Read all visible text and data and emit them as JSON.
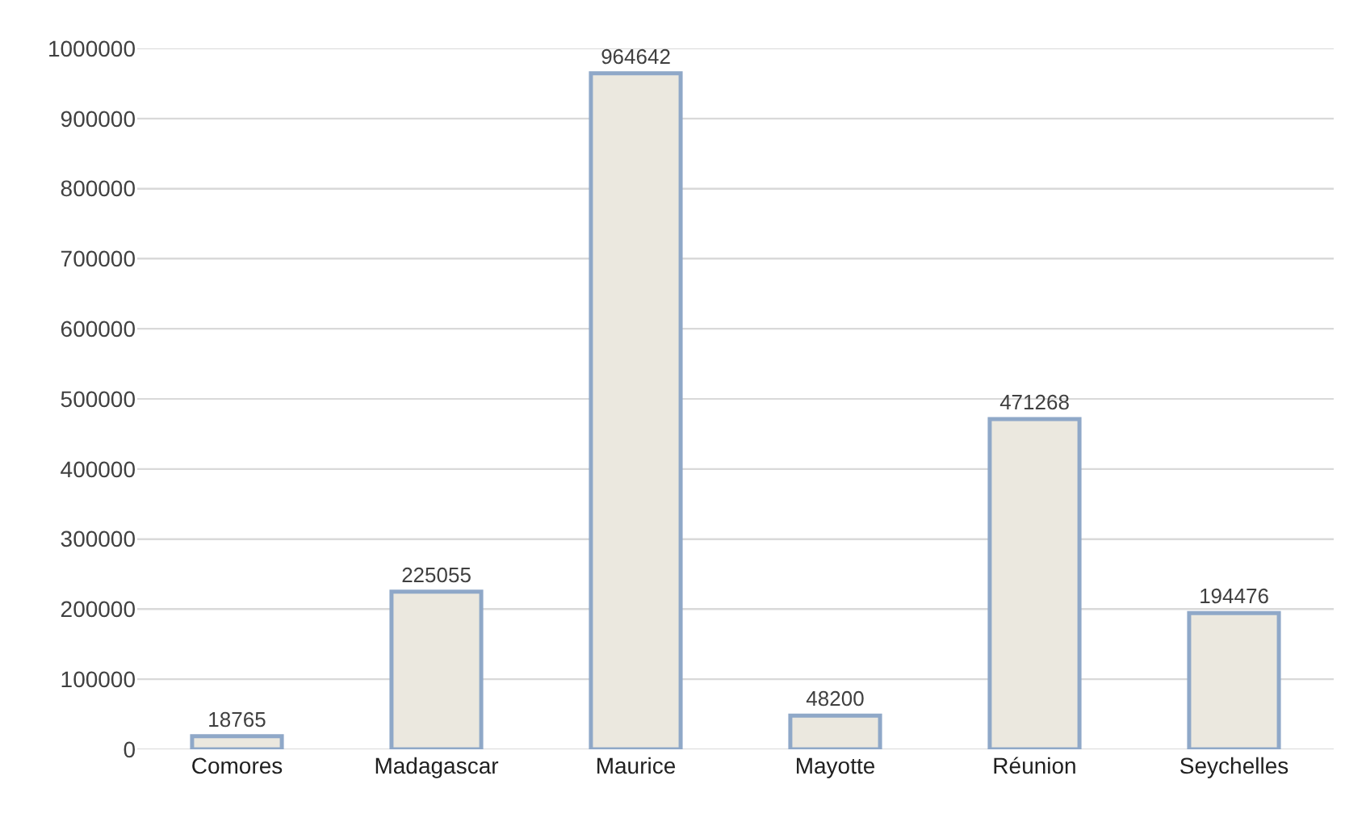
{
  "chart_data": {
    "type": "bar",
    "categories": [
      "Comores",
      "Madagascar",
      "Maurice",
      "Mayotte",
      "Réunion",
      "Seychelles"
    ],
    "values": [
      18765,
      225055,
      964642,
      48200,
      471268,
      194476
    ],
    "color": "#ebe8df",
    "data_labels": true,
    "ylim": [
      0,
      1000000
    ],
    "yticks": [
      0,
      100000,
      200000,
      300000,
      400000,
      500000,
      600000,
      700000,
      800000,
      900000,
      1000000
    ],
    "grid": "y",
    "legend": false
  }
}
